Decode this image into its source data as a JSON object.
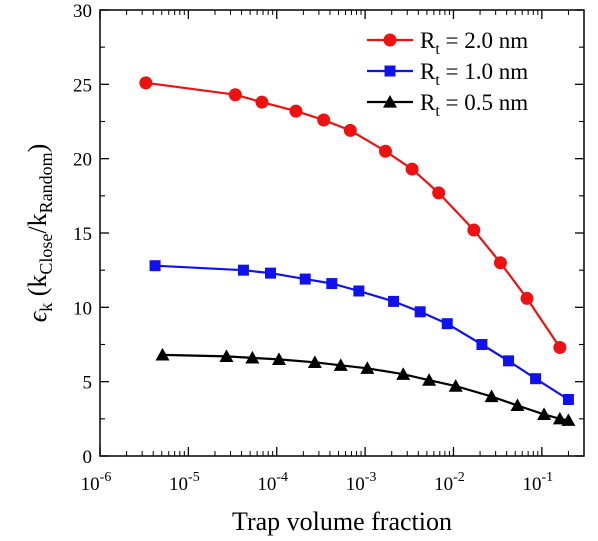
{
  "chart_data": {
    "type": "line",
    "title": "",
    "xlabel": "Trap volume fraction",
    "ylabel_parts": {
      "symbol": "ϵ",
      "symbol_sub": "k",
      "open": " (k",
      "sub1": "Close",
      "slash": "/k",
      "sub2": "Random",
      "close": ")"
    },
    "x_scale": "log",
    "xlim": [
      1e-06,
      0.3
    ],
    "ylim": [
      0,
      30
    ],
    "x_ticks": [
      {
        "value": 1e-06,
        "base": "10",
        "exp": "-6"
      },
      {
        "value": 1e-05,
        "base": "10",
        "exp": "-5"
      },
      {
        "value": 0.0001,
        "base": "10",
        "exp": "-4"
      },
      {
        "value": 0.001,
        "base": "10",
        "exp": "-3"
      },
      {
        "value": 0.01,
        "base": "10",
        "exp": "-2"
      },
      {
        "value": 0.1,
        "base": "10",
        "exp": "-1"
      }
    ],
    "y_ticks": [
      0,
      5,
      10,
      15,
      20,
      25,
      30
    ],
    "legend_position": "top-right",
    "series": [
      {
        "name_base": "R",
        "name_sub": "t",
        "name_rest": " = 2.0 nm",
        "color": "#ee1111",
        "marker": "circle",
        "x": [
          3.3e-06,
          3.4e-05,
          6.8e-05,
          0.000165,
          0.00034,
          0.00068,
          0.0017,
          0.0034,
          0.0068,
          0.017,
          0.034,
          0.068,
          0.16
        ],
        "y": [
          25.1,
          24.3,
          23.8,
          23.2,
          22.6,
          21.9,
          20.5,
          19.3,
          17.7,
          15.2,
          13.0,
          10.6,
          7.3
        ]
      },
      {
        "name_base": "R",
        "name_sub": "t",
        "name_rest": " = 1.0 nm",
        "color": "#1111ee",
        "marker": "square",
        "x": [
          4.2e-06,
          4.2e-05,
          8.5e-05,
          0.00021,
          0.00042,
          0.00085,
          0.0021,
          0.0042,
          0.0085,
          0.021,
          0.042,
          0.085,
          0.2
        ],
        "y": [
          12.8,
          12.5,
          12.3,
          11.9,
          11.6,
          11.1,
          10.4,
          9.7,
          8.9,
          7.5,
          6.4,
          5.2,
          3.8
        ]
      },
      {
        "name_base": "R",
        "name_sub": "t",
        "name_rest": " = 0.5 nm",
        "color": "#000000",
        "marker": "triangle",
        "x": [
          5.1e-06,
          2.7e-05,
          5.3e-05,
          0.000106,
          0.00027,
          0.00053,
          0.00106,
          0.0027,
          0.0053,
          0.0106,
          0.027,
          0.053,
          0.106,
          0.16,
          0.2
        ],
        "y": [
          6.8,
          6.7,
          6.6,
          6.5,
          6.3,
          6.1,
          5.9,
          5.5,
          5.1,
          4.7,
          4.0,
          3.4,
          2.8,
          2.5,
          2.4
        ]
      }
    ]
  }
}
